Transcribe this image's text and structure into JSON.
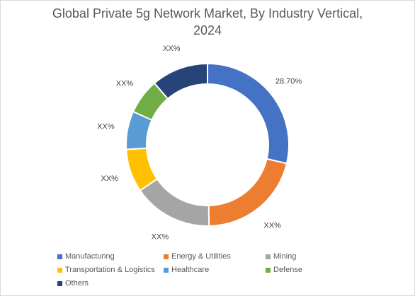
{
  "chart_data": {
    "type": "pie",
    "donut": true,
    "title_lines": [
      "Global Private 5g Network Market, By Industry Vertical,",
      "2024"
    ],
    "slices": [
      {
        "name": "Manufacturing",
        "value": 28.7,
        "label": "28.70%",
        "color": "#4472C4"
      },
      {
        "name": "Energy & Utilities",
        "value": 21.0,
        "label": "XX%",
        "color": "#ED7D31"
      },
      {
        "name": "Mining",
        "value": 15.8,
        "label": "XX%",
        "color": "#A5A5A5"
      },
      {
        "name": "Transportation & Logistics",
        "value": 8.6,
        "label": "XX%",
        "color": "#FFC000"
      },
      {
        "name": "Healthcare",
        "value": 7.6,
        "label": "XX%",
        "color": "#5B9BD5"
      },
      {
        "name": "Defense",
        "value": 7.0,
        "label": "XX%",
        "color": "#70AD47"
      },
      {
        "name": "Others",
        "value": 11.3,
        "label": "XX%",
        "color": "#264478"
      }
    ],
    "legend_position": "bottom"
  }
}
